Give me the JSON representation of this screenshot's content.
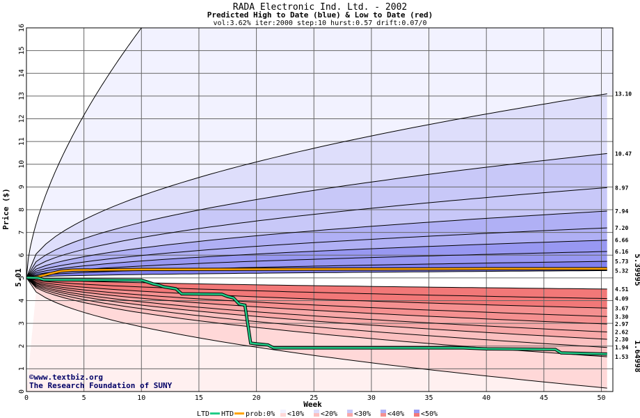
{
  "chart_data": {
    "type": "area",
    "title": "RADA Electronic Ind. Ltd. - 2002",
    "subtitle": "Predicted High to Date (blue) &  Low to Date (red)",
    "params": "vol:3.62% iter:2000 step:10 hurst:0.57 drift:0.07/0",
    "xlabel": "Week",
    "ylabel": "Price ($)",
    "xlim": [
      0,
      51
    ],
    "ylim": [
      0,
      16
    ],
    "x_ticks": [
      0,
      5,
      10,
      15,
      20,
      25,
      30,
      35,
      40,
      45,
      50
    ],
    "y_ticks": [
      0,
      1,
      2,
      3,
      4,
      5,
      6,
      7,
      8,
      9,
      10,
      11,
      12,
      13,
      14,
      15,
      16
    ],
    "grid": true,
    "start_price": 5.01,
    "start_label": "5.01",
    "high_bands_end": [
      13.1,
      10.47,
      8.97,
      7.94,
      7.2,
      6.66,
      6.16,
      5.73,
      5.32
    ],
    "high_band_labels": [
      "13.10",
      "10.47",
      "8.97",
      "7.94",
      "7.20",
      "6.66",
      "6.16",
      "5.73",
      "5.32"
    ],
    "low_bands_end": [
      4.51,
      4.09,
      3.67,
      3.3,
      2.97,
      2.62,
      2.3,
      1.94,
      1.53
    ],
    "low_band_labels": [
      "4.51",
      "4.09",
      "3.67",
      "3.30",
      "2.97",
      "2.62",
      "2.30",
      "1.94",
      "1.53"
    ],
    "outer_high_end": {
      "x": 10,
      "y": 16
    },
    "outer_low_end": 0.15,
    "htd_value_label": "5.39995",
    "ltd_value_label": "1.64998",
    "htd_series": {
      "x": [
        0,
        1,
        2,
        3,
        4,
        10,
        20,
        30,
        40,
        50.5
      ],
      "y": [
        5.01,
        5.05,
        5.18,
        5.3,
        5.34,
        5.37,
        5.38,
        5.39,
        5.4,
        5.4
      ]
    },
    "ltd_series": {
      "x": [
        0,
        1,
        1.5,
        10,
        10.5,
        11,
        11.5,
        12,
        13,
        13.5,
        17,
        17.5,
        18,
        18.5,
        19,
        19.5,
        20,
        21,
        21.5,
        38,
        40,
        46,
        46.5,
        50.5
      ],
      "y": [
        5.01,
        5.0,
        4.92,
        4.9,
        4.82,
        4.74,
        4.68,
        4.6,
        4.52,
        4.3,
        4.28,
        4.18,
        4.12,
        3.85,
        3.8,
        2.13,
        2.1,
        2.05,
        1.92,
        1.92,
        1.88,
        1.85,
        1.7,
        1.65
      ]
    },
    "legend": {
      "ltd": "LTD",
      "htd": "HTD",
      "prob": "prob:0%",
      "bands": [
        "<10%",
        "<20%",
        "<30%",
        "<40%",
        "<50%"
      ]
    },
    "colors": {
      "htd": "#ffa500",
      "ltd": "#22cc88",
      "blue": [
        "#f2f2ff",
        "#dedefb",
        "#c8c8f8",
        "#b0b0f5",
        "#9898f2",
        "#8080ee"
      ],
      "red": [
        "#fff0f0",
        "#ffd8d8",
        "#fbc0c0",
        "#f8a8a8",
        "#f59090",
        "#f27878"
      ]
    }
  },
  "credit": {
    "copyright": "©www.textbiz.org",
    "org": "The Research Foundation of SUNY"
  }
}
